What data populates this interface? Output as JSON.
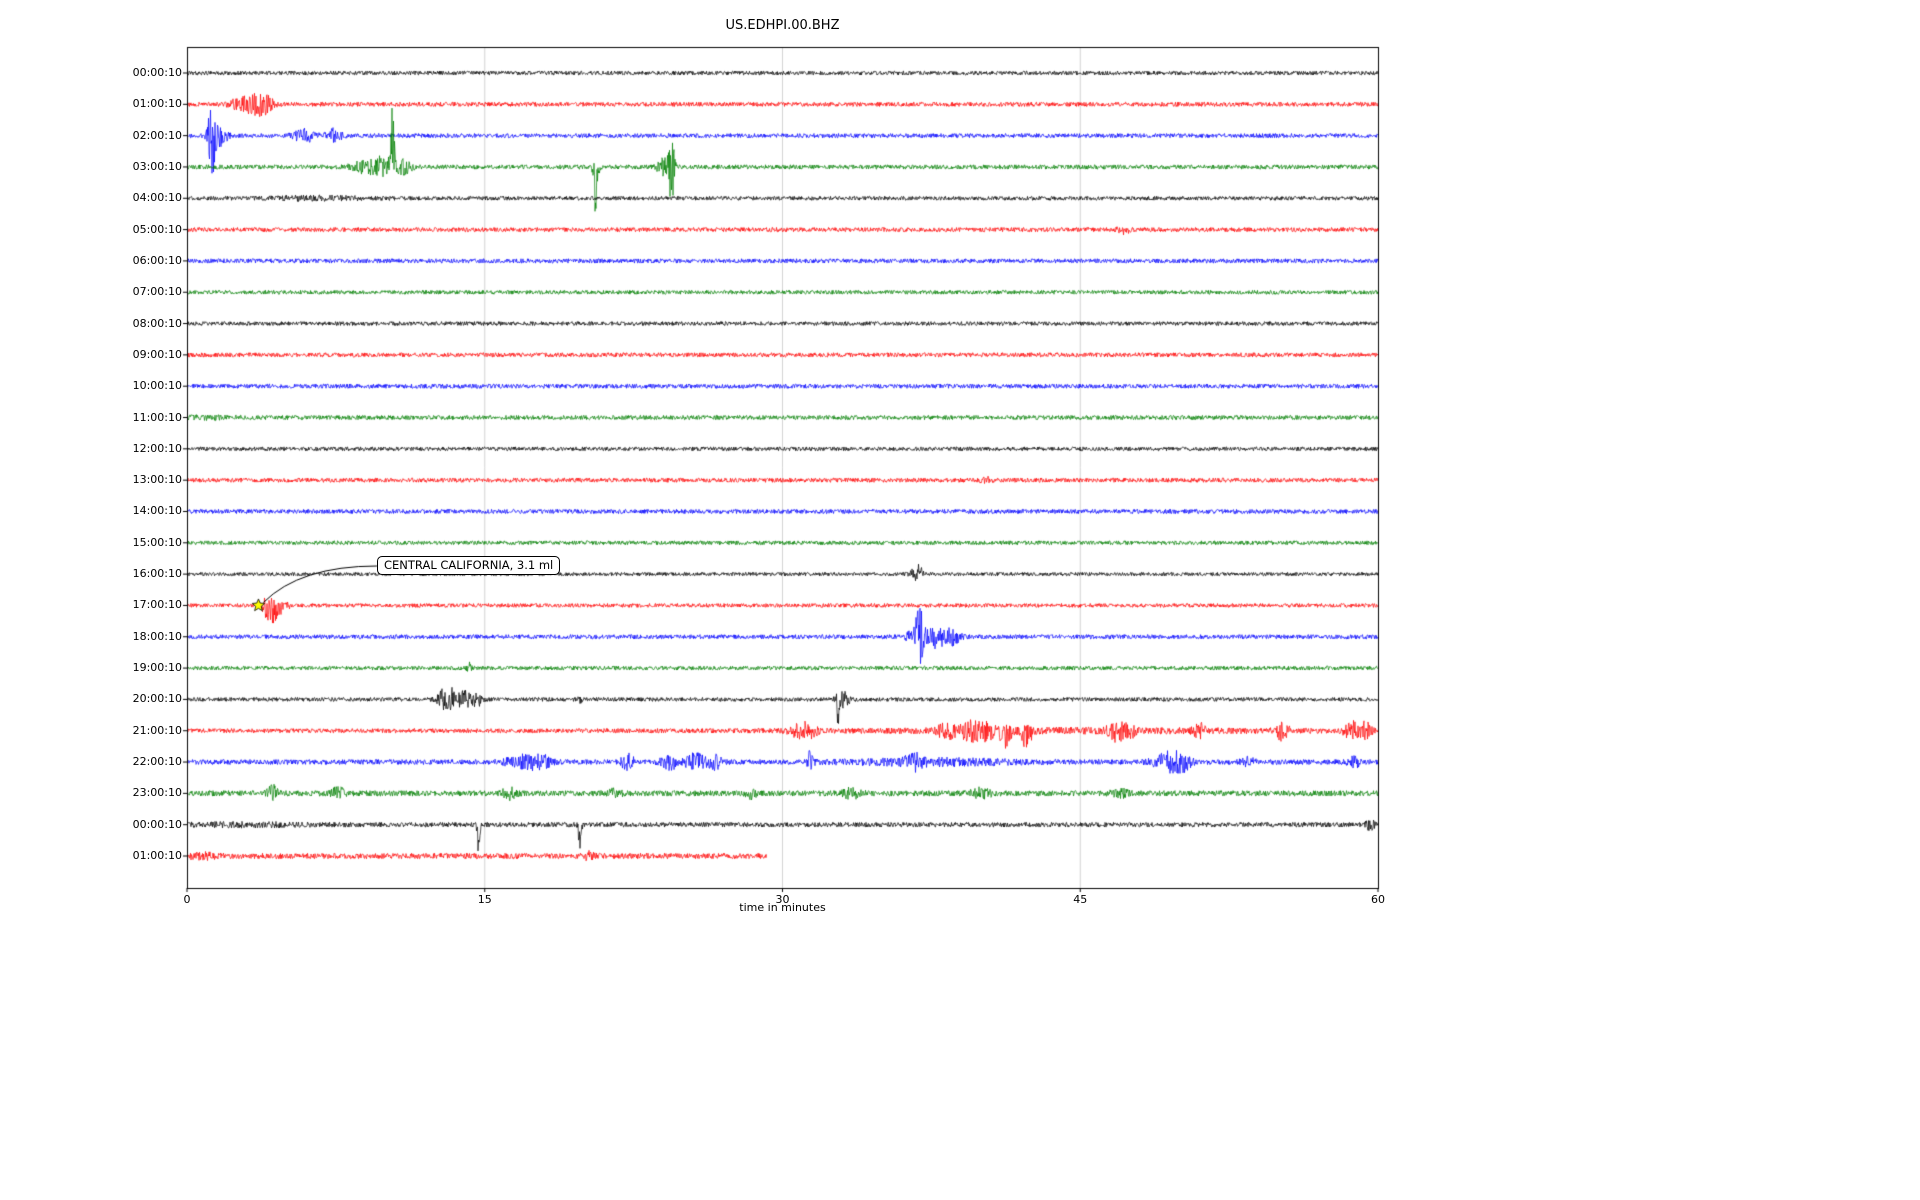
{
  "chart_data": {
    "type": "line",
    "subtype": "seismogram-dayplot",
    "title": "US.EDHPI.00.BHZ",
    "xlabel": "time in minutes",
    "xlim": [
      0,
      60
    ],
    "xticks": [
      0,
      15,
      30,
      45,
      60
    ],
    "xtick_labels": [
      "0",
      "15",
      "30",
      "45",
      "60"
    ],
    "grid": {
      "vertical_ticks": [
        15,
        30,
        45
      ],
      "color": "#c8c8c8"
    },
    "trace_color_cycle": [
      "#000000",
      "#ff0000",
      "#0000ff",
      "#008000"
    ],
    "annotation": {
      "text": "CENTRAL CALIFORNIA, 3.1 ml",
      "row": 17,
      "minute": 3.6,
      "marker": "yellow-star",
      "marker_fill": "#ffff00",
      "marker_edge": "#000000"
    },
    "rows": [
      {
        "label": "00:00:10",
        "color": "#000000",
        "noise": 2.0,
        "end": 60,
        "events": []
      },
      {
        "label": "01:00:10",
        "color": "#ff0000",
        "noise": 2.2,
        "end": 60,
        "events": [
          [
            2.3,
            3,
            0.3,
            0
          ],
          [
            2.9,
            5,
            0.4,
            -0.1
          ],
          [
            3.5,
            8,
            0.5,
            0
          ],
          [
            4.0,
            6,
            0.4,
            0
          ]
        ]
      },
      {
        "label": "02:00:10",
        "color": "#0000ff",
        "noise": 2.2,
        "end": 60,
        "events": [
          [
            1.25,
            38,
            0.18,
            -0.05
          ],
          [
            1.6,
            10,
            0.4,
            0
          ],
          [
            5.9,
            7,
            0.5,
            0
          ],
          [
            7.4,
            6,
            0.4,
            0
          ]
        ]
      },
      {
        "label": "03:00:10",
        "color": "#008000",
        "noise": 2.2,
        "end": 60,
        "events": [
          [
            8.8,
            5,
            0.6,
            0
          ],
          [
            9.7,
            9,
            0.5,
            0
          ],
          [
            10.35,
            48,
            0.12,
            -0.55
          ],
          [
            10.9,
            7,
            0.4,
            0
          ],
          [
            20.6,
            40,
            0.12,
            0.6
          ],
          [
            24.0,
            8,
            0.3,
            0
          ],
          [
            24.4,
            36,
            0.15,
            0.05
          ]
        ]
      },
      {
        "label": "04:00:10",
        "color": "#000000",
        "noise": 2.0,
        "end": 60,
        "events": [
          [
            6.5,
            1.5,
            2.5,
            0
          ]
        ]
      },
      {
        "label": "05:00:10",
        "color": "#ff0000",
        "noise": 2.2,
        "end": 60,
        "events": [
          [
            47.2,
            3.5,
            0.3,
            0
          ]
        ]
      },
      {
        "label": "06:00:10",
        "color": "#0000ff",
        "noise": 2.2,
        "end": 60,
        "events": []
      },
      {
        "label": "07:00:10",
        "color": "#008000",
        "noise": 2.0,
        "end": 60,
        "events": []
      },
      {
        "label": "08:00:10",
        "color": "#000000",
        "noise": 2.0,
        "end": 60,
        "events": []
      },
      {
        "label": "09:00:10",
        "color": "#ff0000",
        "noise": 2.2,
        "end": 60,
        "events": []
      },
      {
        "label": "10:00:10",
        "color": "#0000ff",
        "noise": 2.2,
        "end": 60,
        "events": []
      },
      {
        "label": "11:00:10",
        "color": "#008000",
        "noise": 2.2,
        "end": 60,
        "events": [
          [
            1.0,
            1.0,
            1.5,
            0
          ]
        ]
      },
      {
        "label": "12:00:10",
        "color": "#000000",
        "noise": 2.0,
        "end": 60,
        "events": []
      },
      {
        "label": "13:00:10",
        "color": "#ff0000",
        "noise": 2.2,
        "end": 60,
        "events": [
          [
            40.2,
            3,
            0.25,
            0
          ]
        ]
      },
      {
        "label": "14:00:10",
        "color": "#0000ff",
        "noise": 2.2,
        "end": 60,
        "events": []
      },
      {
        "label": "15:00:10",
        "color": "#008000",
        "noise": 2.0,
        "end": 60,
        "events": []
      },
      {
        "label": "16:00:10",
        "color": "#000000",
        "noise": 1.8,
        "end": 60,
        "events": [
          [
            36.8,
            8,
            0.3,
            -0.2
          ]
        ]
      },
      {
        "label": "17:00:10",
        "color": "#ff0000",
        "noise": 2.0,
        "end": 60,
        "events": [
          [
            4.0,
            5,
            0.3,
            0
          ],
          [
            4.3,
            12,
            0.35,
            0.35
          ],
          [
            4.8,
            4,
            0.4,
            0.2
          ]
        ]
      },
      {
        "label": "18:00:10",
        "color": "#0000ff",
        "noise": 2.2,
        "end": 60,
        "events": [
          [
            36.5,
            5,
            0.3,
            0
          ],
          [
            36.9,
            30,
            0.2,
            0
          ],
          [
            37.6,
            9,
            0.6,
            0.15
          ],
          [
            38.4,
            8,
            0.5,
            0.1
          ]
        ]
      },
      {
        "label": "19:00:10",
        "color": "#008000",
        "noise": 2.0,
        "end": 60,
        "events": [
          [
            14.2,
            5,
            0.12,
            -0.3
          ]
        ]
      },
      {
        "label": "20:00:10",
        "color": "#000000",
        "noise": 2.0,
        "end": 60,
        "events": [
          [
            12.9,
            9,
            0.3,
            0
          ],
          [
            13.4,
            11,
            0.35,
            0.1
          ],
          [
            14.0,
            8,
            0.3,
            0
          ],
          [
            14.6,
            7,
            0.25,
            0.1
          ],
          [
            19.8,
            3,
            0.2,
            0
          ],
          [
            32.8,
            19,
            0.15,
            0.45
          ],
          [
            33.1,
            7,
            0.3,
            0
          ]
        ]
      },
      {
        "label": "21:00:10",
        "color": "#ff0000",
        "noise": 2.2,
        "end": 60,
        "events": [
          [
            45,
            1.5,
            13,
            0
          ],
          [
            30.8,
            7,
            0.5,
            0
          ],
          [
            31.4,
            5,
            0.4,
            0
          ],
          [
            38.3,
            7,
            0.5,
            0.1
          ],
          [
            39.5,
            9,
            0.5,
            0.1
          ],
          [
            40.3,
            8,
            0.4,
            0.2
          ],
          [
            41.2,
            12,
            0.3,
            0.5
          ],
          [
            42.3,
            14,
            0.25,
            0.5
          ],
          [
            46.8,
            9,
            0.4,
            0.1
          ],
          [
            47.4,
            7,
            0.35,
            0.2
          ],
          [
            51.0,
            6,
            0.3,
            0
          ],
          [
            55.2,
            9,
            0.3,
            0.1
          ],
          [
            58.7,
            8,
            0.4,
            0
          ],
          [
            59.4,
            7,
            0.35,
            0
          ]
        ]
      },
      {
        "label": "22:00:10",
        "color": "#0000ff",
        "noise": 2.6,
        "end": 60,
        "events": [
          [
            17.0,
            6,
            0.9,
            0
          ],
          [
            17.8,
            5,
            0.5,
            0
          ],
          [
            22.2,
            8,
            0.3,
            0
          ],
          [
            24.3,
            7,
            0.4,
            0
          ],
          [
            25.6,
            8,
            0.5,
            0
          ],
          [
            26.6,
            7,
            0.3,
            0
          ],
          [
            31.4,
            11,
            0.15,
            0
          ],
          [
            36.6,
            6,
            0.4,
            0
          ],
          [
            37.5,
            2.5,
            4.0,
            0
          ],
          [
            49.4,
            9,
            0.7,
            0
          ],
          [
            50.2,
            7,
            0.4,
            0
          ],
          [
            53.5,
            4,
            0.4,
            0
          ],
          [
            58.8,
            6,
            0.3,
            0
          ]
        ]
      },
      {
        "label": "23:00:10",
        "color": "#008000",
        "noise": 2.8,
        "end": 60,
        "events": [
          [
            4.3,
            7,
            0.25,
            -0.2
          ],
          [
            7.6,
            6,
            0.3,
            0
          ],
          [
            16.2,
            5,
            0.35,
            0
          ],
          [
            21.5,
            3,
            0.4,
            0
          ],
          [
            28.4,
            6,
            0.25,
            0
          ],
          [
            33.5,
            4,
            0.5,
            0
          ],
          [
            40.0,
            4,
            0.5,
            0
          ],
          [
            47.0,
            3,
            0.5,
            0
          ]
        ]
      },
      {
        "label": "00:00:10",
        "color": "#000000",
        "noise": 2.4,
        "end": 60,
        "events": [
          [
            3.0,
            1.2,
            3.0,
            0
          ],
          [
            14.7,
            26,
            0.08,
            0.85
          ],
          [
            19.8,
            28,
            0.08,
            0.85
          ],
          [
            59.6,
            5,
            0.2,
            0
          ]
        ]
      },
      {
        "label": "01:00:10",
        "color": "#ff0000",
        "noise": 2.8,
        "end": 29.2,
        "events": [
          [
            0.8,
            2,
            0.8,
            0
          ],
          [
            20.2,
            3,
            0.3,
            0
          ]
        ]
      }
    ]
  }
}
